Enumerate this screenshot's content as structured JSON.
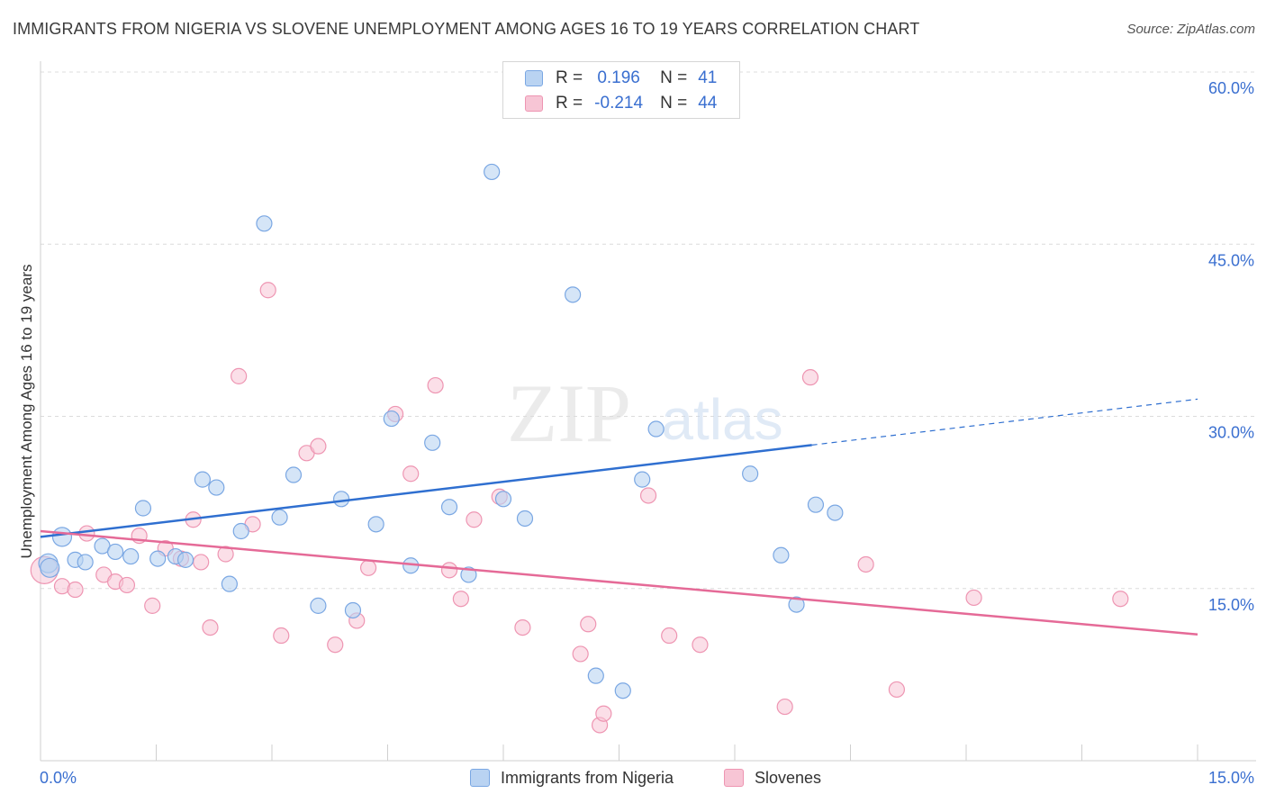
{
  "title": "IMMIGRANTS FROM NIGERIA VS SLOVENE UNEMPLOYMENT AMONG AGES 16 TO 19 YEARS CORRELATION CHART",
  "source": "Source: ZipAtlas.com",
  "watermark": {
    "zip": "ZIP",
    "atlas": "atlas"
  },
  "legend": {
    "rows": [
      {
        "r_label": "R =",
        "r_value": "0.196",
        "n_label": "N =",
        "n_value": "41"
      },
      {
        "r_label": "R =",
        "r_value": "-0.214",
        "n_label": "N =",
        "n_value": "44"
      }
    ]
  },
  "colors": {
    "blue_fill": "#b9d3f2",
    "blue_stroke": "#7aa7e3",
    "blue_line": "#2f6fd0",
    "pink_fill": "#f7c5d5",
    "pink_stroke": "#ee95b2",
    "pink_line": "#e56a97",
    "grid": "#dcdcdc",
    "tick_text": "#3a6fd0"
  },
  "chart_data": {
    "type": "scatter",
    "title": "IMMIGRANTS FROM NIGERIA VS SLOVENE UNEMPLOYMENT AMONG AGES 16 TO 19 YEARS CORRELATION CHART",
    "xlabel": "",
    "ylabel": "Unemployment Among Ages 16 to 19 years",
    "xlim": [
      0,
      15
    ],
    "ylim": [
      0,
      60
    ],
    "x_tick_labels": [
      "0.0%",
      "15.0%"
    ],
    "y_ticks": [
      15,
      30,
      45,
      60
    ],
    "y_tick_labels": [
      "15.0%",
      "30.0%",
      "45.0%",
      "60.0%"
    ],
    "grid": "horizontal dashed",
    "legend_position": "bottom-center",
    "series": [
      {
        "name": "Immigrants from Nigeria",
        "color": "#b9d3f2",
        "points": [
          [
            0.1,
            17.2
          ],
          [
            0.28,
            19.5
          ],
          [
            0.45,
            17.5
          ],
          [
            0.58,
            17.3
          ],
          [
            0.8,
            18.7
          ],
          [
            0.97,
            18.2
          ],
          [
            1.17,
            17.8
          ],
          [
            1.33,
            22.0
          ],
          [
            1.52,
            17.6
          ],
          [
            1.75,
            17.8
          ],
          [
            1.88,
            17.5
          ],
          [
            2.1,
            24.5
          ],
          [
            2.28,
            23.8
          ],
          [
            2.45,
            15.4
          ],
          [
            2.6,
            20.0
          ],
          [
            2.9,
            46.8
          ],
          [
            3.1,
            21.2
          ],
          [
            3.28,
            24.9
          ],
          [
            3.6,
            13.5
          ],
          [
            3.9,
            22.8
          ],
          [
            4.05,
            13.1
          ],
          [
            4.35,
            20.6
          ],
          [
            4.55,
            29.8
          ],
          [
            4.8,
            17.0
          ],
          [
            5.08,
            27.7
          ],
          [
            5.3,
            22.1
          ],
          [
            5.55,
            16.2
          ],
          [
            5.85,
            51.3
          ],
          [
            6.0,
            22.8
          ],
          [
            6.28,
            21.1
          ],
          [
            6.9,
            40.6
          ],
          [
            7.2,
            7.4
          ],
          [
            7.55,
            6.1
          ],
          [
            7.8,
            24.5
          ],
          [
            7.98,
            28.9
          ],
          [
            9.2,
            25.0
          ],
          [
            9.6,
            17.9
          ],
          [
            9.8,
            13.6
          ],
          [
            10.05,
            22.3
          ],
          [
            10.3,
            21.6
          ],
          [
            0.12,
            16.8
          ]
        ]
      },
      {
        "name": "Slovenes",
        "color": "#f7c5d5",
        "points": [
          [
            0.05,
            16.6
          ],
          [
            0.28,
            15.2
          ],
          [
            0.45,
            14.9
          ],
          [
            0.6,
            19.8
          ],
          [
            0.82,
            16.2
          ],
          [
            0.97,
            15.6
          ],
          [
            1.12,
            15.3
          ],
          [
            1.28,
            19.6
          ],
          [
            1.45,
            13.5
          ],
          [
            1.62,
            18.5
          ],
          [
            1.82,
            17.6
          ],
          [
            1.98,
            21.0
          ],
          [
            2.08,
            17.3
          ],
          [
            2.2,
            11.6
          ],
          [
            2.4,
            18.0
          ],
          [
            2.57,
            33.5
          ],
          [
            2.75,
            20.6
          ],
          [
            2.95,
            41.0
          ],
          [
            3.12,
            10.9
          ],
          [
            3.45,
            26.8
          ],
          [
            3.6,
            27.4
          ],
          [
            3.82,
            10.1
          ],
          [
            4.1,
            12.2
          ],
          [
            4.25,
            16.8
          ],
          [
            4.6,
            30.2
          ],
          [
            4.8,
            25.0
          ],
          [
            5.12,
            32.7
          ],
          [
            5.3,
            16.6
          ],
          [
            5.45,
            14.1
          ],
          [
            5.62,
            21.0
          ],
          [
            5.95,
            23.0
          ],
          [
            6.25,
            11.6
          ],
          [
            7.0,
            9.3
          ],
          [
            7.1,
            11.9
          ],
          [
            7.25,
            3.1
          ],
          [
            7.3,
            4.1
          ],
          [
            7.88,
            23.1
          ],
          [
            8.15,
            10.9
          ],
          [
            8.55,
            10.1
          ],
          [
            9.65,
            4.7
          ],
          [
            9.98,
            33.4
          ],
          [
            10.7,
            17.1
          ],
          [
            11.1,
            6.2
          ],
          [
            12.1,
            14.2
          ],
          [
            14.0,
            14.1
          ]
        ]
      }
    ],
    "trend_lines": [
      {
        "series": "Immigrants from Nigeria",
        "solid": [
          [
            0,
            19.5
          ],
          [
            10.0,
            27.5
          ]
        ],
        "dashed_to": [
          15.0,
          31.5
        ]
      },
      {
        "series": "Slovenes",
        "solid": [
          [
            0,
            20.0
          ],
          [
            15.0,
            11.0
          ]
        ]
      }
    ]
  }
}
